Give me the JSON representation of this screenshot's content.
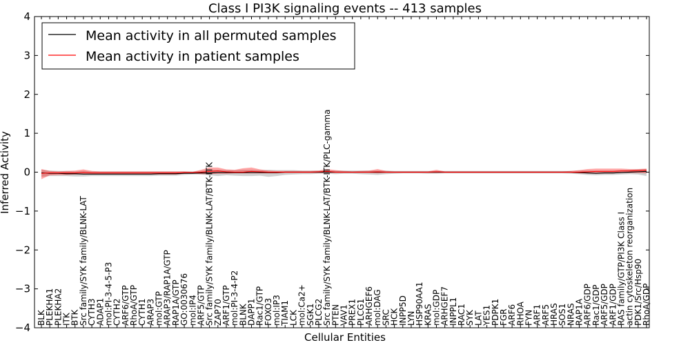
{
  "chart_data": {
    "type": "line",
    "title": "Class I PI3K signaling events -- 413 samples",
    "xlabel": "Cellular Entities",
    "ylabel": "Inferred Activity",
    "ylim": [
      -4,
      4
    ],
    "yticks": [
      "4",
      "3",
      "2",
      "1",
      "0",
      "−1",
      "−2",
      "−3",
      "−4"
    ],
    "ytick_values": [
      4,
      3,
      2,
      1,
      0,
      -1,
      -2,
      -3,
      -4
    ],
    "grid": false,
    "legend": {
      "placement": "top-left",
      "entries": [
        {
          "label": "Mean activity in all permuted samples",
          "color": "#000000"
        },
        {
          "label": "Mean activity in patient samples",
          "color": "#ff0000"
        }
      ]
    },
    "categories": [
      "BLK",
      "PLEKHA1",
      "PLEKHA2",
      "ITK",
      "BTK",
      "Src family/SYK family/BLNK-LAT",
      "CYTH3",
      "ADAP1",
      "mol:PI-3-4-5-P3",
      "CYTH2",
      "ARF6/GTP",
      "RhoA/GTP",
      "CYTH1",
      "ARAP3",
      "mol:GTP",
      "ARAP3/RAP1A/GTP",
      "RAP1A/GTP",
      "GO:0030676",
      "mol:IP4",
      "ARF5/GTP",
      "Src family/SYK family/BLNK-LAT/BTK-ITK",
      "ZAP70",
      "ARF1/GTP",
      "mol:PI-3-4-P2",
      "BLNK",
      "DAPP1",
      "Rac1/GTP",
      "FOXO3",
      "mol:IP3",
      "TIAM1",
      "LCK",
      "mol:Ca2+",
      "SGK1",
      "PLCG2",
      "Src family/SYK family/BLNK-LAT/BTK-ITK/PLC-gamma",
      "PTEN",
      "VAV1",
      "PREX1",
      "PLCG1",
      "ARHGEF6",
      "mol:DAG",
      "SRC",
      "HCK",
      "INPP5D",
      "LYN",
      "HSP90AA1",
      "KRAS",
      "mol:GDP",
      "ARHGEF7",
      "INPPL1",
      "RAC1",
      "SYK",
      "LAT",
      "YES1",
      "PDPK1",
      "FGR",
      "ARF6",
      "RHOA",
      "FYN",
      "ARF1",
      "ARF5",
      "HRAS",
      "SOS1",
      "NRAS",
      "RAP1A",
      "ARF6/GDP",
      "Rac1/GDP",
      "ARF5/GDP",
      "ARF1/GDP",
      "RAS family/GTP/PI3K Class I",
      "actin cytoskeleton reorganization",
      "PDK1/Src/Hsp90",
      "RhoA/GDP"
    ],
    "series": [
      {
        "name": "Mean activity in all permuted samples",
        "color": "#000000",
        "values": [
          -0.02,
          -0.03,
          -0.03,
          -0.04,
          -0.04,
          -0.05,
          -0.05,
          -0.05,
          -0.05,
          -0.05,
          -0.05,
          -0.05,
          -0.05,
          -0.05,
          -0.04,
          -0.04,
          -0.04,
          -0.03,
          -0.03,
          -0.02,
          -0.02,
          -0.01,
          -0.01,
          -0.01,
          -0.01,
          -0.01,
          -0.01,
          -0.01,
          -0.01,
          0.0,
          0.0,
          0.0,
          0.0,
          0.0,
          0.0,
          0.0,
          0.0,
          0.0,
          0.0,
          0.0,
          0.0,
          0.0,
          0.0,
          0.0,
          0.0,
          0.0,
          0.0,
          0.0,
          0.0,
          0.0,
          0.0,
          0.0,
          0.0,
          0.0,
          0.0,
          0.0,
          0.0,
          0.0,
          0.0,
          0.0,
          0.0,
          0.0,
          0.0,
          0.0,
          -0.01,
          -0.02,
          -0.03,
          -0.02,
          -0.02,
          -0.01,
          0.0,
          0.01,
          0.02
        ],
        "lower": [
          -0.12,
          -0.1,
          -0.1,
          -0.1,
          -0.11,
          -0.11,
          -0.1,
          -0.1,
          -0.1,
          -0.1,
          -0.1,
          -0.1,
          -0.1,
          -0.1,
          -0.09,
          -0.09,
          -0.09,
          -0.07,
          -0.06,
          -0.06,
          -0.08,
          -0.1,
          -0.08,
          -0.09,
          -0.1,
          -0.1,
          -0.09,
          -0.12,
          -0.1,
          -0.07,
          -0.06,
          -0.05,
          -0.05,
          -0.04,
          -0.04,
          -0.05,
          -0.04,
          -0.04,
          -0.05,
          -0.06,
          -0.07,
          -0.05,
          -0.04,
          -0.03,
          -0.03,
          -0.03,
          -0.04,
          -0.04,
          -0.03,
          -0.03,
          -0.03,
          -0.03,
          -0.03,
          -0.03,
          -0.03,
          -0.03,
          -0.03,
          -0.03,
          -0.03,
          -0.03,
          -0.03,
          -0.03,
          -0.03,
          -0.04,
          -0.05,
          -0.07,
          -0.08,
          -0.07,
          -0.07,
          -0.06,
          -0.05,
          -0.06,
          -0.1
        ],
        "upper": [
          0.06,
          0.04,
          0.03,
          0.03,
          0.02,
          0.03,
          0.02,
          0.02,
          0.02,
          0.02,
          0.02,
          0.02,
          0.02,
          0.02,
          0.02,
          0.02,
          0.02,
          0.02,
          0.02,
          0.03,
          0.06,
          0.06,
          0.05,
          0.05,
          0.06,
          0.06,
          0.05,
          0.06,
          0.05,
          0.05,
          0.05,
          0.04,
          0.04,
          0.04,
          0.04,
          0.04,
          0.04,
          0.04,
          0.04,
          0.04,
          0.04,
          0.04,
          0.03,
          0.03,
          0.03,
          0.03,
          0.03,
          0.03,
          0.03,
          0.03,
          0.03,
          0.03,
          0.03,
          0.03,
          0.03,
          0.03,
          0.03,
          0.03,
          0.03,
          0.03,
          0.03,
          0.03,
          0.03,
          0.03,
          0.04,
          0.04,
          0.04,
          0.04,
          0.04,
          0.05,
          0.06,
          0.07,
          0.08
        ]
      },
      {
        "name": "Mean activity in patient samples",
        "color": "#ff0000",
        "values": [
          -0.03,
          -0.02,
          -0.02,
          -0.02,
          -0.02,
          -0.01,
          -0.02,
          -0.02,
          -0.02,
          -0.02,
          -0.02,
          -0.02,
          -0.02,
          -0.02,
          -0.02,
          -0.02,
          -0.02,
          -0.01,
          -0.01,
          0.0,
          0.02,
          0.03,
          0.01,
          0.0,
          0.0,
          0.02,
          0.01,
          0.0,
          0.0,
          0.0,
          0.0,
          0.0,
          0.0,
          0.01,
          0.02,
          0.0,
          0.0,
          0.0,
          0.0,
          0.0,
          0.01,
          0.0,
          0.0,
          0.0,
          0.0,
          0.0,
          0.0,
          0.01,
          0.0,
          0.0,
          0.0,
          0.0,
          0.0,
          0.0,
          0.0,
          0.0,
          0.0,
          0.0,
          0.0,
          0.0,
          0.0,
          0.0,
          0.0,
          0.0,
          0.0,
          0.01,
          0.02,
          0.02,
          0.02,
          0.03,
          0.03,
          0.04,
          0.05
        ],
        "lower": [
          -0.18,
          -0.08,
          -0.07,
          -0.07,
          -0.06,
          -0.05,
          -0.06,
          -0.06,
          -0.06,
          -0.06,
          -0.06,
          -0.06,
          -0.06,
          -0.06,
          -0.06,
          -0.06,
          -0.06,
          -0.04,
          -0.03,
          -0.05,
          -0.05,
          -0.04,
          -0.04,
          -0.03,
          -0.03,
          -0.03,
          -0.03,
          -0.03,
          -0.03,
          -0.02,
          -0.02,
          -0.02,
          -0.02,
          -0.02,
          -0.02,
          -0.02,
          -0.02,
          -0.02,
          -0.02,
          -0.02,
          -0.03,
          -0.02,
          -0.02,
          -0.02,
          -0.02,
          -0.02,
          -0.02,
          -0.02,
          -0.02,
          -0.02,
          -0.02,
          -0.02,
          -0.02,
          -0.02,
          -0.02,
          -0.02,
          -0.02,
          -0.02,
          -0.02,
          -0.02,
          -0.02,
          -0.02,
          -0.02,
          -0.02,
          -0.03,
          -0.03,
          -0.03,
          -0.03,
          -0.03,
          -0.02,
          -0.02,
          -0.02,
          -0.03
        ],
        "upper": [
          0.08,
          0.03,
          0.02,
          0.03,
          0.04,
          0.07,
          0.03,
          0.02,
          0.02,
          0.02,
          0.02,
          0.02,
          0.02,
          0.02,
          0.02,
          0.02,
          0.02,
          0.02,
          0.01,
          0.06,
          0.12,
          0.12,
          0.07,
          0.06,
          0.1,
          0.12,
          0.07,
          0.04,
          0.03,
          0.03,
          0.03,
          0.03,
          0.03,
          0.04,
          0.08,
          0.05,
          0.03,
          0.02,
          0.03,
          0.04,
          0.08,
          0.03,
          0.02,
          0.02,
          0.02,
          0.02,
          0.02,
          0.06,
          0.02,
          0.02,
          0.02,
          0.02,
          0.02,
          0.02,
          0.02,
          0.02,
          0.02,
          0.02,
          0.02,
          0.02,
          0.02,
          0.02,
          0.02,
          0.03,
          0.05,
          0.08,
          0.09,
          0.09,
          0.09,
          0.09,
          0.08,
          0.08,
          0.09
        ]
      }
    ]
  }
}
